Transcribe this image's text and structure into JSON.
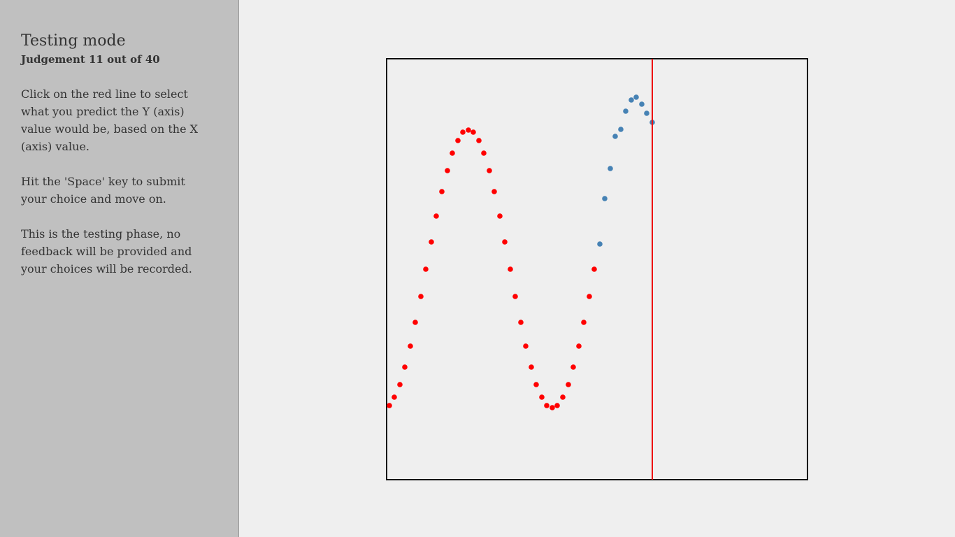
{
  "sidebar": {
    "title": "Testing mode",
    "subtitle": "Judgement 11 out of 40",
    "paragraphs": [
      [
        "Click on the red line to select",
        "what you predict the Y (axis)",
        "value would be, based on the X",
        "(axis) value."
      ],
      [
        "Hit the 'Space' key to submit",
        "your choice and move on."
      ],
      [
        "This is the testing phase, no",
        "feedback will be provided and",
        "your choices will be recorded."
      ]
    ]
  },
  "chart_data": {
    "type": "scatter",
    "xlim": [
      0,
      602
    ],
    "ylim": [
      0,
      602
    ],
    "marker_x": 380,
    "marker_color": "#ee1111",
    "series": [
      {
        "color": "#ff0000",
        "x": [
          4,
          11,
          19,
          26,
          34,
          41,
          49,
          56,
          64,
          71,
          79,
          87,
          94,
          102,
          109,
          117,
          124,
          132,
          139,
          147,
          154,
          162,
          169,
          177,
          184,
          192,
          199,
          207,
          214,
          222,
          229,
          237,
          244,
          252,
          260,
          267,
          275,
          282,
          290,
          297
        ],
        "values": [
          106,
          118,
          136,
          161,
          191,
          225,
          262,
          301,
          340,
          377,
          412,
          442,
          467,
          485,
          497,
          500,
          497,
          485,
          467,
          442,
          412,
          377,
          340,
          301,
          262,
          225,
          191,
          161,
          136,
          118,
          106,
          103,
          106,
          118,
          136,
          161,
          191,
          225,
          262,
          301
        ]
      },
      {
        "color": "#4682b4",
        "x": [
          305,
          312,
          320,
          327,
          335,
          342,
          350,
          357,
          365,
          372,
          380
        ],
        "values": [
          337,
          402,
          445,
          491,
          501,
          527,
          543,
          547,
          537,
          524,
          511
        ]
      }
    ]
  }
}
